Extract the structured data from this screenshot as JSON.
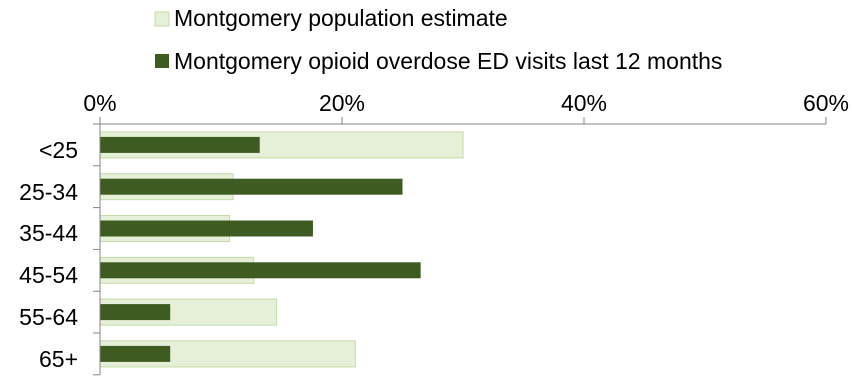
{
  "chart_data": {
    "type": "bar",
    "orientation": "horizontal",
    "categories": [
      "<25",
      "25-34",
      "35-44",
      "45-54",
      "55-64",
      "65+"
    ],
    "series": [
      {
        "name": "Montgomery population estimate",
        "values": [
          30,
          11,
          10.7,
          12.7,
          14.6,
          21.1
        ],
        "color": "#e6efd8",
        "border": "#c5dba9"
      },
      {
        "name": "Montgomery opioid overdose ED visits last 12 months",
        "values": [
          13.2,
          25,
          17.6,
          26.5,
          5.8,
          5.8
        ],
        "color": "#3e5c22"
      }
    ],
    "x_ticks": [
      "0%",
      "20%",
      "40%",
      "60%"
    ],
    "xlim": [
      0,
      60
    ],
    "x_axis_position": "top",
    "legend_position": "top",
    "grid": false,
    "title": "",
    "xlabel": "",
    "ylabel": ""
  }
}
